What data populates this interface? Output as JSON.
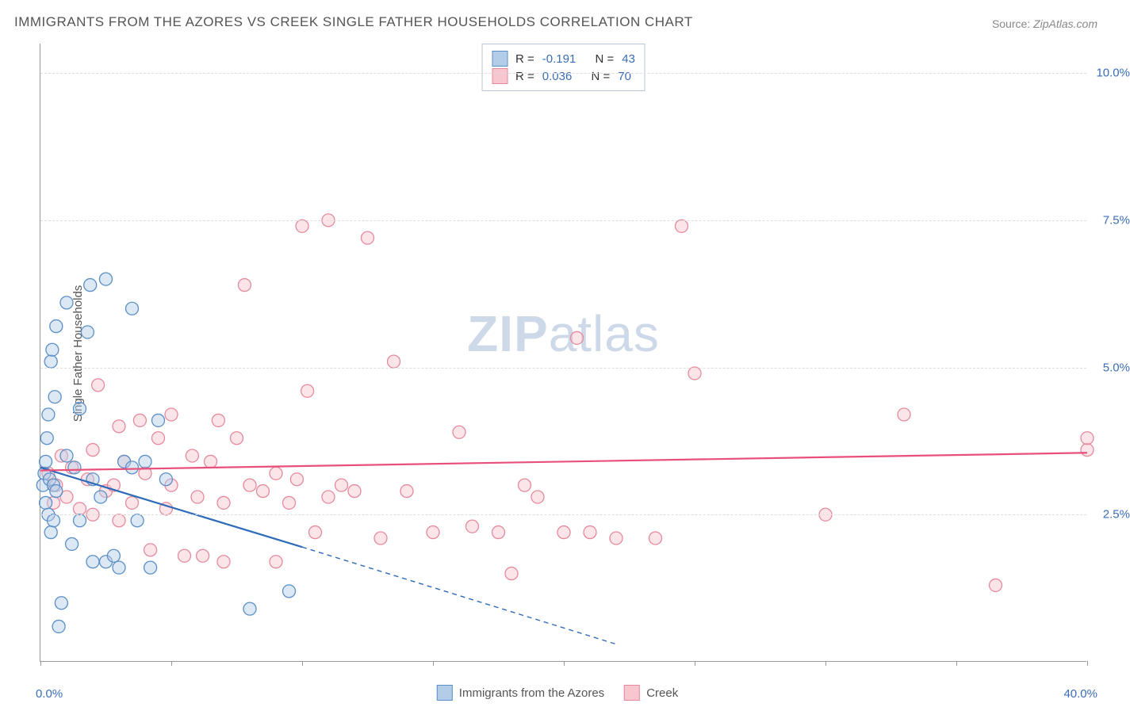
{
  "title": "IMMIGRANTS FROM THE AZORES VS CREEK SINGLE FATHER HOUSEHOLDS CORRELATION CHART",
  "source_label": "Source:",
  "source_value": "ZipAtlas.com",
  "watermark": "ZIPatlas",
  "ylabel": "Single Father Households",
  "x_axis": {
    "min_label": "0.0%",
    "max_label": "40.0%",
    "min": 0,
    "max": 40
  },
  "y_axis": {
    "min": 0,
    "max": 10.5,
    "ticks": [
      2.5,
      5.0,
      7.5,
      10.0
    ],
    "tick_labels": [
      "2.5%",
      "5.0%",
      "7.5%",
      "10.0%"
    ]
  },
  "x_ticks": [
    0,
    5,
    10,
    15,
    20,
    25,
    30,
    35,
    40
  ],
  "colors": {
    "blue_fill": "#b3cde8",
    "blue_stroke": "#5a8fc7",
    "blue_line": "#2e6bb8",
    "pink_fill": "#f7c6cf",
    "pink_stroke": "#e58a9c",
    "pink_line": "#e94f7a",
    "grid": "#dddddd",
    "axis": "#999999",
    "text": "#555555",
    "value_text": "#3b6db5"
  },
  "legend_top": {
    "series": [
      {
        "color_key": "blue",
        "r_label": "R =",
        "r_value": "-0.191",
        "n_label": "N =",
        "n_value": "43"
      },
      {
        "color_key": "pink",
        "r_label": "R =",
        "r_value": "0.036",
        "n_label": "N =",
        "n_value": "70"
      }
    ]
  },
  "legend_bottom": {
    "items": [
      {
        "color_key": "blue",
        "label": "Immigrants from the Azores"
      },
      {
        "color_key": "pink",
        "label": "Creek"
      }
    ]
  },
  "chart": {
    "type": "scatter",
    "marker_radius": 8,
    "marker_fill_opacity": 0.45,
    "marker_stroke_width": 1.3,
    "trend_line_width": 2.2,
    "series_blue": {
      "trend": {
        "x1": 0,
        "y1": 3.3,
        "x2": 10,
        "y2": 1.95,
        "dash_x2": 22,
        "dash_y2": 0.3
      },
      "points": [
        [
          0.1,
          3.0
        ],
        [
          0.15,
          3.2
        ],
        [
          0.2,
          3.4
        ],
        [
          0.2,
          2.7
        ],
        [
          0.25,
          3.8
        ],
        [
          0.3,
          2.5
        ],
        [
          0.3,
          4.2
        ],
        [
          0.35,
          3.1
        ],
        [
          0.4,
          5.1
        ],
        [
          0.4,
          2.2
        ],
        [
          0.45,
          5.3
        ],
        [
          0.5,
          3.0
        ],
        [
          0.5,
          2.4
        ],
        [
          0.55,
          4.5
        ],
        [
          0.6,
          5.7
        ],
        [
          0.6,
          2.9
        ],
        [
          0.7,
          0.6
        ],
        [
          0.8,
          1.0
        ],
        [
          1.0,
          3.5
        ],
        [
          1.0,
          6.1
        ],
        [
          1.2,
          2.0
        ],
        [
          1.3,
          3.3
        ],
        [
          1.5,
          4.3
        ],
        [
          1.5,
          2.4
        ],
        [
          1.8,
          5.6
        ],
        [
          1.9,
          6.4
        ],
        [
          2.0,
          1.7
        ],
        [
          2.0,
          3.1
        ],
        [
          2.3,
          2.8
        ],
        [
          2.5,
          6.5
        ],
        [
          2.5,
          1.7
        ],
        [
          2.8,
          1.8
        ],
        [
          3.0,
          1.6
        ],
        [
          3.2,
          3.4
        ],
        [
          3.5,
          6.0
        ],
        [
          3.5,
          3.3
        ],
        [
          3.7,
          2.4
        ],
        [
          4.0,
          3.4
        ],
        [
          4.2,
          1.6
        ],
        [
          4.5,
          4.1
        ],
        [
          4.8,
          3.1
        ],
        [
          8.0,
          0.9
        ],
        [
          9.5,
          1.2
        ]
      ]
    },
    "series_pink": {
      "trend": {
        "x1": 0,
        "y1": 3.25,
        "x2": 40,
        "y2": 3.55
      },
      "points": [
        [
          0.3,
          3.2
        ],
        [
          0.5,
          2.7
        ],
        [
          0.6,
          3.0
        ],
        [
          0.8,
          3.5
        ],
        [
          1.0,
          2.8
        ],
        [
          1.2,
          3.3
        ],
        [
          1.5,
          2.6
        ],
        [
          1.8,
          3.1
        ],
        [
          2.0,
          3.6
        ],
        [
          2.0,
          2.5
        ],
        [
          2.2,
          4.7
        ],
        [
          2.5,
          2.9
        ],
        [
          2.8,
          3.0
        ],
        [
          3.0,
          4.0
        ],
        [
          3.0,
          2.4
        ],
        [
          3.2,
          3.4
        ],
        [
          3.5,
          2.7
        ],
        [
          3.8,
          4.1
        ],
        [
          4.0,
          3.2
        ],
        [
          4.2,
          1.9
        ],
        [
          4.5,
          3.8
        ],
        [
          4.8,
          2.6
        ],
        [
          5.0,
          3.0
        ],
        [
          5.0,
          4.2
        ],
        [
          5.5,
          1.8
        ],
        [
          5.8,
          3.5
        ],
        [
          6.0,
          2.8
        ],
        [
          6.2,
          1.8
        ],
        [
          6.5,
          3.4
        ],
        [
          6.8,
          4.1
        ],
        [
          7.0,
          2.7
        ],
        [
          7.0,
          1.7
        ],
        [
          7.5,
          3.8
        ],
        [
          7.8,
          6.4
        ],
        [
          8.0,
          3.0
        ],
        [
          8.5,
          2.9
        ],
        [
          9.0,
          1.7
        ],
        [
          9.0,
          3.2
        ],
        [
          9.5,
          2.7
        ],
        [
          9.8,
          3.1
        ],
        [
          10.0,
          7.4
        ],
        [
          10.2,
          4.6
        ],
        [
          10.5,
          2.2
        ],
        [
          11.0,
          7.5
        ],
        [
          11.0,
          2.8
        ],
        [
          11.5,
          3.0
        ],
        [
          12.0,
          2.9
        ],
        [
          12.5,
          7.2
        ],
        [
          13.0,
          2.1
        ],
        [
          13.5,
          5.1
        ],
        [
          14.0,
          2.9
        ],
        [
          15.0,
          2.2
        ],
        [
          16.0,
          3.9
        ],
        [
          16.5,
          2.3
        ],
        [
          17.5,
          2.2
        ],
        [
          18.0,
          1.5
        ],
        [
          18.5,
          3.0
        ],
        [
          19.0,
          2.8
        ],
        [
          20.0,
          2.2
        ],
        [
          20.5,
          5.5
        ],
        [
          21.0,
          2.2
        ],
        [
          22.0,
          2.1
        ],
        [
          23.5,
          2.1
        ],
        [
          24.5,
          7.4
        ],
        [
          25.0,
          4.9
        ],
        [
          30.0,
          2.5
        ],
        [
          33.0,
          4.2
        ],
        [
          36.5,
          1.3
        ],
        [
          40.0,
          3.6
        ],
        [
          40.0,
          3.8
        ]
      ]
    }
  }
}
